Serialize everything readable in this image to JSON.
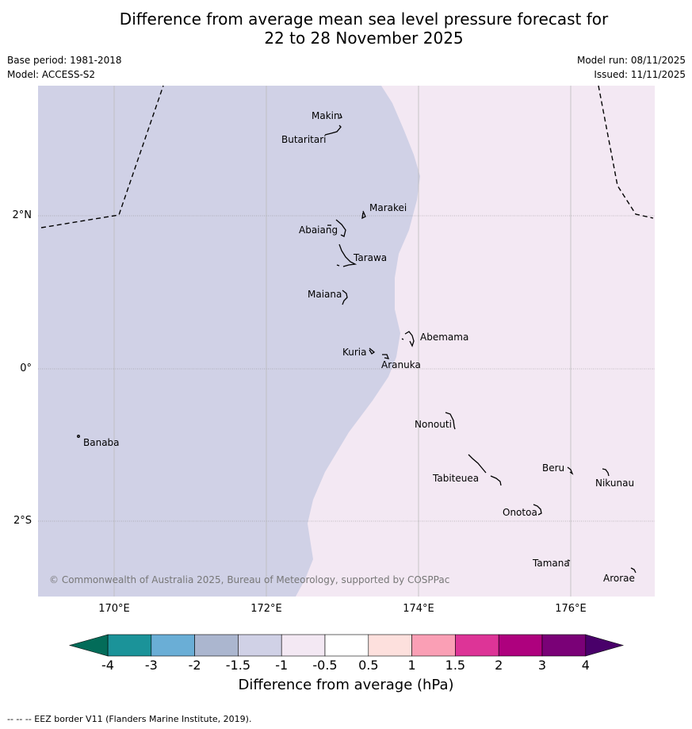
{
  "title_line1": "Difference from average mean sea level pressure forecast for",
  "title_line2": "22 to 28 November 2025",
  "base_period": "Base period: 1981-2018",
  "model": "Model: ACCESS-S2",
  "model_run": "Model run: 08/11/2025",
  "issued": "Issued: 11/11/2025",
  "copyright": "© Commonwealth of Australia 2025, Bureau of Meteorology, supported by COSPPac",
  "footer": "--  --  -- EEZ border V11 (Flanders Marine Institute, 2019).",
  "lat_labels": [
    "2°N",
    "0°",
    "2°S"
  ],
  "lon_labels": [
    "170°E",
    "172°E",
    "174°E",
    "176°E"
  ],
  "places": {
    "makin": "Makin",
    "butaritari": "Butaritari",
    "marakei": "Marakei",
    "abaiang": "Abaiang",
    "tarawa": "Tarawa",
    "maiana": "Maiana",
    "abemama": "Abemama",
    "kuria": "Kuria",
    "aranuka": "Aranuka",
    "banaba": "Banaba",
    "nonouti": "Nonouti",
    "tabiteuea": "Tabiteuea",
    "beru": "Beru",
    "nikunau": "Nikunau",
    "onotoa": "Onotoa",
    "tamana": "Tamana",
    "arorae": "Arorae"
  },
  "colorbar": {
    "label": "Difference from average (hPa)",
    "ticks": [
      "-4",
      "-3",
      "-2",
      "-1.5",
      "-1",
      "-0.5",
      "0.5",
      "1",
      "1.5",
      "2",
      "3",
      "4"
    ],
    "colors": [
      "#1b9399",
      "#6aaed6",
      "#abb6cf",
      "#d0d1e6",
      "#f3e8f3",
      "#ffffff",
      "#fde0dd",
      "#fa9fb5",
      "#dd3497",
      "#ae017e",
      "#7a0177"
    ],
    "under_color": "#036c59",
    "over_color": "#49006a"
  },
  "field": {
    "low_color": "#d0d1e6",
    "high_color": "#f3e8f3"
  }
}
